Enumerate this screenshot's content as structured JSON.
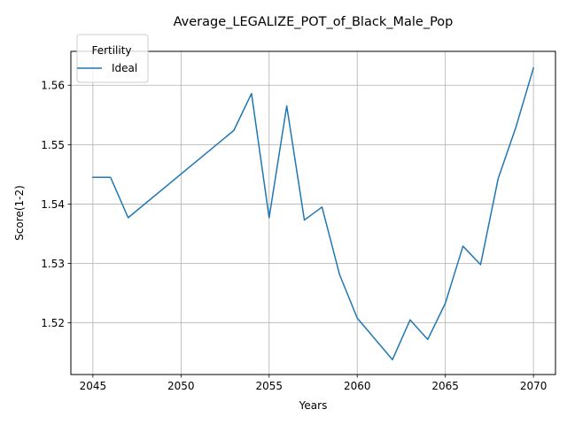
{
  "chart_data": {
    "type": "line",
    "title": "Average_LEGALIZE_POT_of_Black_Male_Pop",
    "xlabel": "Years",
    "ylabel": "Score(1-2)",
    "xlim": [
      2043.75,
      2071.25
    ],
    "ylim": [
      1.5113,
      1.5657
    ],
    "xticks": [
      2045,
      2050,
      2055,
      2060,
      2065,
      2070
    ],
    "yticks": [
      1.52,
      1.53,
      1.54,
      1.55,
      1.56
    ],
    "grid": true,
    "legend": {
      "title": "Fertility",
      "placement": "upper-left"
    },
    "series": [
      {
        "name": "Ideal",
        "color": "#1f77b4",
        "x": [
          2045,
          2046,
          2047,
          2053,
          2054,
          2055,
          2056,
          2057,
          2058,
          2059,
          2060,
          2062,
          2063,
          2064,
          2065,
          2066,
          2067,
          2068,
          2069,
          2070
        ],
        "y": [
          1.5445,
          1.5445,
          1.5377,
          1.5524,
          1.5586,
          1.5377,
          1.5565,
          1.5373,
          1.5395,
          1.5281,
          1.5208,
          1.5138,
          1.5205,
          1.5172,
          1.5233,
          1.5329,
          1.5298,
          1.5443,
          1.5529,
          1.5629
        ]
      }
    ]
  }
}
